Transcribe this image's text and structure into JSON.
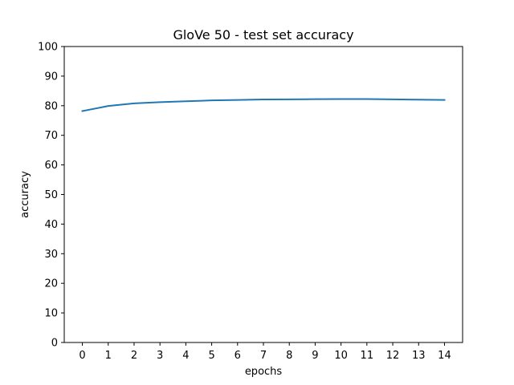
{
  "chart_data": {
    "type": "line",
    "title": "GloVe 50 - test set accuracy",
    "xlabel": "epochs",
    "ylabel": "accuracy",
    "xlim": [
      -0.7,
      14.7
    ],
    "ylim": [
      0,
      100
    ],
    "xticks": [
      "0",
      "1",
      "2",
      "3",
      "4",
      "5",
      "6",
      "7",
      "8",
      "9",
      "10",
      "11",
      "12",
      "13",
      "14"
    ],
    "yticks": [
      "0",
      "10",
      "20",
      "30",
      "40",
      "50",
      "60",
      "70",
      "80",
      "90",
      "100"
    ],
    "grid": false,
    "x": [
      0,
      1,
      2,
      3,
      4,
      5,
      6,
      7,
      8,
      9,
      10,
      11,
      12,
      13,
      14
    ],
    "series": [
      {
        "color": "#1f77b4",
        "values": [
          78.2,
          79.9,
          80.8,
          81.2,
          81.5,
          81.8,
          81.95,
          82.1,
          82.15,
          82.2,
          82.25,
          82.25,
          82.15,
          82.05,
          81.95
        ]
      }
    ]
  }
}
